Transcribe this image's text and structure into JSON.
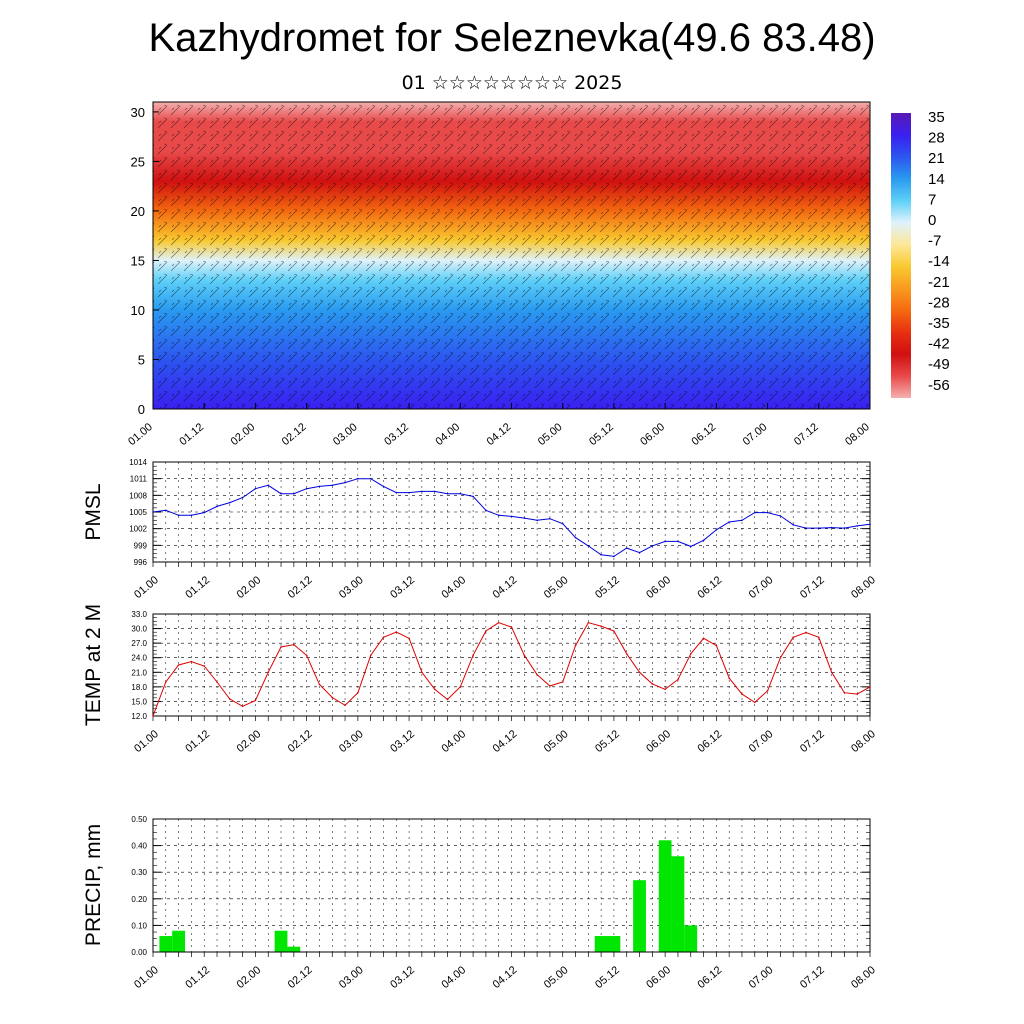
{
  "title": "Kazhydromet for Seleznevka(49.6 83.48)",
  "subtitle": "01 ☆☆☆☆☆☆☆☆ 2025",
  "time_ticks": [
    "01.00",
    "01.12",
    "02.00",
    "02.12",
    "03.00",
    "03.12",
    "04.00",
    "04.12",
    "05.00",
    "05.12",
    "06.00",
    "06.12",
    "07.00",
    "07.12",
    "08.00"
  ],
  "chart_data": [
    {
      "type": "heatmap",
      "title": "",
      "ylim": [
        0,
        31
      ],
      "yticks": [
        "0",
        "5",
        "10",
        "15",
        "20",
        "25",
        "30"
      ],
      "colorbar": {
        "labels": [
          "35",
          "28",
          "21",
          "14",
          "7",
          "0",
          "-7",
          "-14",
          "-21",
          "-28",
          "-35",
          "-42",
          "-49",
          "-56"
        ],
        "range": [
          -60,
          38
        ],
        "colors": [
          "#5a1ab4",
          "#3a1ff0",
          "#2c56f0",
          "#2a9af0",
          "#5ed0f8",
          "#dff2fb",
          "#fde89a",
          "#f9c930",
          "#f99a20",
          "#f46a10",
          "#e83010",
          "#d01010",
          "#e84a4a",
          "#f4b0b0"
        ]
      },
      "temp_profile": [
        {
          "level": 0,
          "value": 33
        },
        {
          "level": 5,
          "value": 26
        },
        {
          "level": 10,
          "value": 17
        },
        {
          "level": 13,
          "value": 8
        },
        {
          "level": 15,
          "value": -3
        },
        {
          "level": 17,
          "value": -15
        },
        {
          "level": 20,
          "value": -30
        },
        {
          "level": 23,
          "value": -45
        },
        {
          "level": 26,
          "value": -52
        },
        {
          "level": 29,
          "value": -56
        },
        {
          "level": 31,
          "value": -57
        }
      ]
    },
    {
      "type": "line",
      "ylabel": "PMSL",
      "ylim": [
        996,
        1014
      ],
      "yticks": [
        "996",
        "999",
        "1002",
        "1005",
        "1008",
        "1011",
        "1014"
      ],
      "color": "#0000dd",
      "x_hours": [
        0,
        3,
        6,
        9,
        12,
        15,
        18,
        21,
        24,
        27,
        30,
        33,
        36,
        39,
        42,
        45,
        48,
        51,
        54,
        57,
        60,
        63,
        66,
        69,
        72,
        75,
        78,
        81,
        84,
        87,
        90,
        93,
        96,
        99,
        102,
        105,
        108,
        111,
        114,
        117,
        120,
        123,
        126,
        129,
        132,
        135,
        138,
        141,
        144,
        147,
        150,
        153,
        156,
        159,
        162,
        165,
        168
      ],
      "values": [
        1005,
        1005.3,
        1004.4,
        1004.4,
        1004.9,
        1006,
        1006.7,
        1007.6,
        1009.2,
        1009.8,
        1008.3,
        1008.3,
        1009.2,
        1009.6,
        1009.8,
        1010.3,
        1011,
        1011,
        1009.6,
        1008.5,
        1008.5,
        1008.7,
        1008.7,
        1008.3,
        1008.3,
        1007.8,
        1005.3,
        1004.4,
        1004.2,
        1003.9,
        1003.5,
        1003.8,
        1002.9,
        1000.4,
        998.9,
        997.3,
        997,
        998.5,
        997.7,
        998.9,
        999.7,
        999.7,
        998.8,
        999.9,
        1001.8,
        1003.2,
        1003.5,
        1004.9,
        1004.9,
        1004.3,
        1002.7,
        1002.1,
        1002.1,
        1002.2,
        1002.1,
        1002.5,
        1002.8
      ]
    },
    {
      "type": "line",
      "ylabel": "TEMP at 2 M",
      "ylim": [
        12,
        33
      ],
      "yticks": [
        "12.0",
        "15.0",
        "18.0",
        "21.0",
        "24.0",
        "27.0",
        "30.0",
        "33.0"
      ],
      "color": "#dd0000",
      "x_hours": [
        0,
        3,
        6,
        9,
        12,
        15,
        18,
        21,
        24,
        27,
        30,
        33,
        36,
        39,
        42,
        45,
        48,
        51,
        54,
        57,
        60,
        63,
        66,
        69,
        72,
        75,
        78,
        81,
        84,
        87,
        90,
        93,
        96,
        99,
        102,
        105,
        108,
        111,
        114,
        117,
        120,
        123,
        126,
        129,
        132,
        135,
        138,
        141,
        144,
        147,
        150,
        153,
        156,
        159,
        162,
        165,
        168
      ],
      "values": [
        12,
        19,
        22.5,
        23.2,
        22.3,
        19,
        15.5,
        14,
        15.2,
        21,
        26.2,
        26.7,
        24.5,
        18.5,
        15.8,
        14.2,
        16.8,
        24.5,
        28.2,
        29.3,
        28,
        21,
        17.5,
        15.4,
        18,
        24.5,
        29.5,
        31.2,
        30.3,
        24.5,
        20.5,
        18.2,
        19,
        26.5,
        31.2,
        30.5,
        29.5,
        24.8,
        21,
        18.6,
        17.5,
        19.5,
        24.8,
        28,
        26.5,
        19.8,
        16.5,
        14.8,
        17.2,
        24,
        28.2,
        29.2,
        28.2,
        21,
        16.8,
        16.5,
        18
      ]
    },
    {
      "type": "bar",
      "ylabel": "PRECIP, mm",
      "ylim": [
        0,
        0.5
      ],
      "yticks": [
        "0.00",
        "0.10",
        "0.20",
        "0.30",
        "0.40",
        "0.50"
      ],
      "color": "#00e600",
      "x_hours": [
        3,
        6,
        9,
        12,
        15,
        18,
        21,
        24,
        27,
        30,
        33,
        36,
        39,
        42,
        45,
        48,
        51,
        54,
        57,
        60,
        63,
        66,
        69,
        72,
        75,
        78,
        81,
        84,
        87,
        90,
        93,
        96,
        99,
        102,
        105,
        108,
        111,
        114,
        117,
        120,
        123,
        126,
        129,
        132,
        135,
        138,
        141,
        144,
        147,
        150,
        153,
        156,
        159,
        162,
        165,
        168
      ],
      "values": [
        0.06,
        0.08,
        0,
        0,
        0,
        0,
        0,
        0,
        0,
        0.08,
        0.02,
        0,
        0,
        0,
        0,
        0,
        0,
        0,
        0,
        0,
        0,
        0,
        0,
        0,
        0,
        0,
        0,
        0,
        0,
        0,
        0,
        0,
        0,
        0,
        0.06,
        0.06,
        0,
        0.27,
        0,
        0.42,
        0.36,
        0.1,
        0,
        0,
        0,
        0,
        0,
        0,
        0,
        0,
        0,
        0,
        0,
        0,
        0,
        0
      ]
    }
  ]
}
